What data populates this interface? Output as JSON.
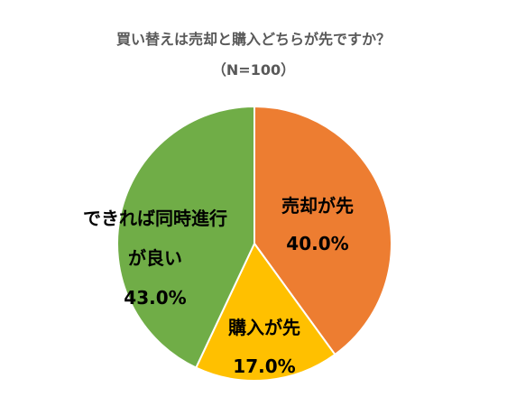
{
  "chart_data": {
    "type": "pie",
    "title": "買い替えは売却と購入どちらが先ですか？",
    "subtitle": "（N=100）",
    "categories": [
      "売却が先",
      "購入が先",
      "できれば同時進行\nが良い"
    ],
    "values": [
      40,
      17,
      43
    ],
    "value_labels": [
      "40.0%",
      "17.0%",
      "43.0%"
    ],
    "colors": [
      "#ED7D31",
      "#FFC000",
      "#70AD47"
    ]
  }
}
